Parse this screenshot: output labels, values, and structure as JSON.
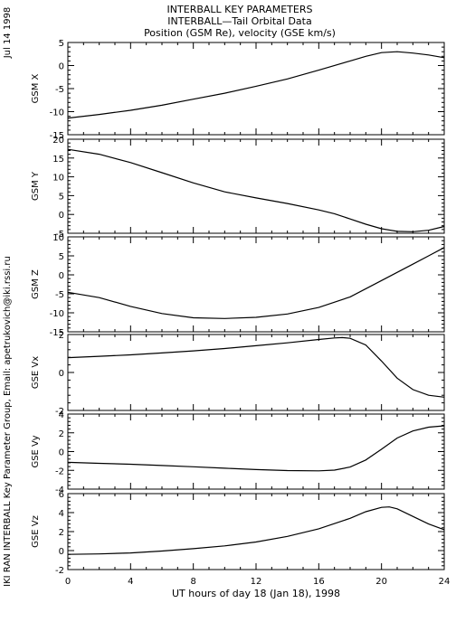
{
  "header": {
    "title": "INTERBALL KEY PARAMETERS",
    "subtitle": "INTERBALL—Tail Orbital Data",
    "subtitle2": "Position (GSM Re), velocity (GSE km/s)"
  },
  "side": {
    "date": "Jul 14 1998",
    "credit": "IKI RAN INTERBALL Key Parameter Group, Email: apetrukovich@iki.rssi.ru"
  },
  "chart_data": {
    "type": "line",
    "xlabel": "UT hours of day  18 (Jan 18), 1998",
    "xlim": [
      0,
      24
    ],
    "xticks": [
      0,
      4,
      8,
      12,
      16,
      20,
      24
    ],
    "panels": [
      {
        "ylabel": "GSM X",
        "ylim": [
          -15,
          5
        ],
        "yticks": [
          -15,
          -10,
          -5,
          0,
          5
        ],
        "x": [
          0,
          2,
          4,
          6,
          8,
          10,
          12,
          14,
          16,
          18,
          19,
          20,
          21,
          22,
          23,
          24
        ],
        "y": [
          -11.4,
          -10.6,
          -9.7,
          -8.6,
          -7.3,
          -6.0,
          -4.5,
          -2.9,
          -1.0,
          1.0,
          2.0,
          2.8,
          3.0,
          2.7,
          2.3,
          1.7
        ]
      },
      {
        "ylabel": "GSM Y",
        "ylim": [
          -5,
          20
        ],
        "yticks": [
          -5,
          0,
          5,
          10,
          15,
          20
        ],
        "x": [
          0,
          2,
          4,
          6,
          8,
          10,
          12,
          14,
          16,
          17,
          18,
          19,
          20,
          21,
          22,
          23,
          24
        ],
        "y": [
          17.3,
          16.0,
          13.8,
          11.1,
          8.4,
          6.0,
          4.4,
          2.9,
          1.2,
          0.2,
          -1.2,
          -2.6,
          -3.8,
          -4.5,
          -4.6,
          -4.2,
          -3.2
        ]
      },
      {
        "ylabel": "GSM Z",
        "ylim": [
          -15,
          10
        ],
        "yticks": [
          -15,
          -10,
          -5,
          0,
          5,
          10
        ],
        "x": [
          0,
          2,
          4,
          6,
          8,
          10,
          12,
          14,
          16,
          18,
          20,
          22,
          23,
          24
        ],
        "y": [
          -4.6,
          -6.0,
          -8.3,
          -10.2,
          -11.3,
          -11.5,
          -11.2,
          -10.3,
          -8.6,
          -5.8,
          -1.5,
          2.8,
          5.0,
          7.2
        ]
      },
      {
        "ylabel": "GSE Vx",
        "ylim": [
          -2,
          2
        ],
        "yticks": [
          -2,
          0,
          2
        ],
        "x": [
          0,
          2,
          4,
          6,
          8,
          10,
          12,
          14,
          16,
          17,
          17.5,
          18,
          19,
          20,
          21,
          22,
          23,
          24
        ],
        "y": [
          0.78,
          0.85,
          0.93,
          1.03,
          1.14,
          1.26,
          1.41,
          1.56,
          1.74,
          1.82,
          1.84,
          1.8,
          1.45,
          0.6,
          -0.3,
          -0.9,
          -1.2,
          -1.3
        ]
      },
      {
        "ylabel": "GSE Vy",
        "ylim": [
          -4,
          4
        ],
        "yticks": [
          -4,
          -2,
          0,
          2,
          4
        ],
        "x": [
          0,
          2,
          4,
          6,
          8,
          10,
          12,
          14,
          16,
          17,
          18,
          19,
          20,
          21,
          22,
          23,
          24
        ],
        "y": [
          -1.15,
          -1.25,
          -1.35,
          -1.48,
          -1.62,
          -1.77,
          -1.92,
          -2.02,
          -2.05,
          -1.98,
          -1.65,
          -0.9,
          0.25,
          1.45,
          2.2,
          2.6,
          2.75
        ]
      },
      {
        "ylabel": "GSE Vz",
        "ylim": [
          -2,
          6
        ],
        "yticks": [
          -2,
          0,
          2,
          4,
          6
        ],
        "x": [
          0,
          2,
          4,
          6,
          8,
          10,
          12,
          14,
          16,
          18,
          19,
          20,
          20.5,
          21,
          22,
          23,
          24
        ],
        "y": [
          -0.4,
          -0.35,
          -0.25,
          -0.05,
          0.2,
          0.5,
          0.9,
          1.5,
          2.3,
          3.4,
          4.1,
          4.55,
          4.6,
          4.4,
          3.6,
          2.8,
          2.2
        ]
      }
    ]
  }
}
